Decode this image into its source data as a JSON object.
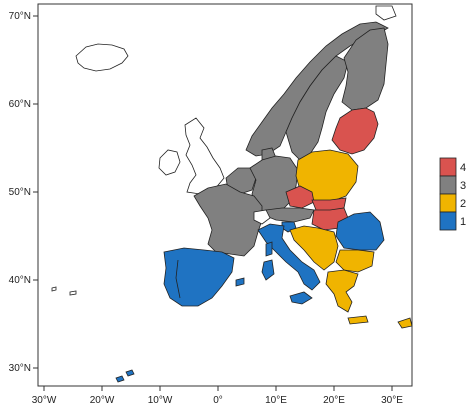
{
  "map": {
    "lat_labels": [
      "70°N",
      "60°N",
      "50°N",
      "40°N",
      "30°N"
    ],
    "lon_labels": [
      "30°W",
      "20°W",
      "10°W",
      "0°",
      "10°E",
      "20°E",
      "30°E"
    ],
    "colors": {
      "red": "#d9534f",
      "gray": "#808080",
      "yellow": "#f0b400",
      "blue": "#1f73c2",
      "white": "#ffffff"
    },
    "legend": {
      "items": [
        {
          "label": "4",
          "color": "#d9534f"
        },
        {
          "label": "3",
          "color": "#808080"
        },
        {
          "label": "2",
          "color": "#f0b400"
        },
        {
          "label": "1",
          "color": "#1f73c2"
        }
      ]
    },
    "regions": {
      "iceland": "white",
      "uk_ireland": "white",
      "norway_sweden": "gray",
      "finland": "gray",
      "denmark": "gray",
      "france": "gray",
      "benelux": "gray",
      "germany": "gray",
      "austria": "gray",
      "baltics": "red",
      "poland": "yellow",
      "czechia": "red",
      "hungary": "red",
      "slovakia": "red",
      "romania": "blue",
      "bulgaria": "yellow",
      "greece": "yellow",
      "balkans": "yellow",
      "italy": "blue",
      "iberia": "blue",
      "slovenia": "blue"
    }
  }
}
